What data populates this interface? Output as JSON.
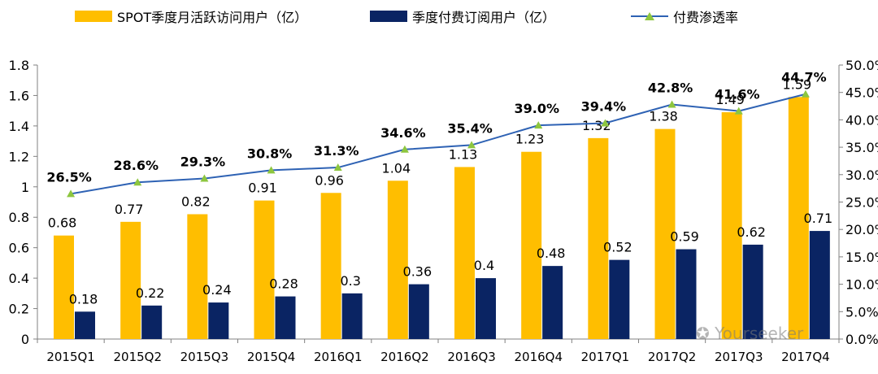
{
  "legend": {
    "mau": "SPOT季度月活跃访问用户（亿）",
    "paid": "季度付费订阅用户（亿）",
    "rate": "付费渗透率"
  },
  "colors": {
    "mau": "#ffbe00",
    "paid": "#0a2463",
    "rate_line": "#2e62b4",
    "rate_marker": "#8dc63f"
  },
  "watermark": "Yourseeker",
  "chart_data": {
    "type": "bar",
    "categories": [
      "2015Q1",
      "2015Q2",
      "2015Q3",
      "2015Q4",
      "2016Q1",
      "2016Q2",
      "2016Q3",
      "2016Q4",
      "2017Q1",
      "2017Q2",
      "2017Q3",
      "2017Q4"
    ],
    "series": [
      {
        "name": "SPOT季度月活跃访问用户（亿）",
        "type": "bar",
        "axis": "left",
        "values": [
          0.68,
          0.77,
          0.82,
          0.91,
          0.96,
          1.04,
          1.13,
          1.23,
          1.32,
          1.38,
          1.49,
          1.59
        ],
        "labels": [
          "0.68",
          "0.77",
          "0.82",
          "0.91",
          "0.96",
          "1.04",
          "1.13",
          "1.23",
          "1.32",
          "1.38",
          "1.49",
          "1.59"
        ]
      },
      {
        "name": "季度付费订阅用户（亿）",
        "type": "bar",
        "axis": "left",
        "values": [
          0.18,
          0.22,
          0.24,
          0.28,
          0.3,
          0.36,
          0.4,
          0.48,
          0.52,
          0.59,
          0.62,
          0.71
        ],
        "labels": [
          "0.18",
          "0.22",
          "0.24",
          "0.28",
          "0.3",
          "0.36",
          "0.4",
          "0.48",
          "0.52",
          "0.59",
          "0.62",
          "0.71"
        ]
      },
      {
        "name": "付费渗透率",
        "type": "line",
        "axis": "right",
        "values": [
          26.5,
          28.6,
          29.3,
          30.8,
          31.3,
          34.6,
          35.4,
          39.0,
          39.4,
          42.8,
          41.6,
          44.7
        ],
        "labels": [
          "26.5%",
          "28.6%",
          "29.3%",
          "30.8%",
          "31.3%",
          "34.6%",
          "35.4%",
          "39.0%",
          "39.4%",
          "42.8%",
          "41.6%",
          "44.7%"
        ]
      }
    ],
    "left_axis": {
      "ylim": [
        0,
        1.8
      ],
      "ticks": [
        "0",
        "0.2",
        "0.4",
        "0.6",
        "0.8",
        "1",
        "1.2",
        "1.4",
        "1.6",
        "1.8"
      ]
    },
    "right_axis": {
      "ylim": [
        0,
        50
      ],
      "ticks": [
        "0.0%",
        "5.0%",
        "10.0%",
        "15.0%",
        "20.0%",
        "25.0%",
        "30.0%",
        "35.0%",
        "40.0%",
        "45.0%",
        "50.0%"
      ]
    },
    "grid": false,
    "legend_position": "top"
  }
}
